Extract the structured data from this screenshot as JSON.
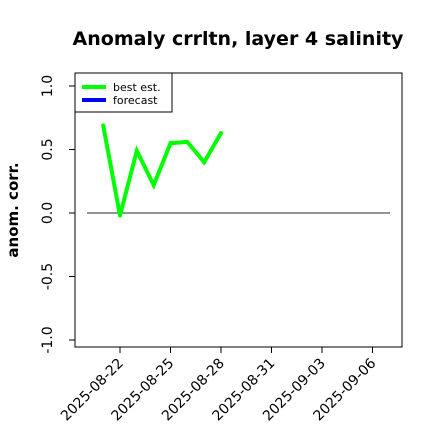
{
  "chart_data": {
    "type": "line",
    "title": "Anomaly crrltn, layer 4 salinity",
    "xlabel": "",
    "ylabel": "anom. corr.",
    "ylim": [
      -1.0,
      1.0
    ],
    "yticks": [
      "-1.0",
      "-0.5",
      "0.0",
      "0.5",
      "1.0"
    ],
    "ytick_values": [
      -1.0,
      -0.5,
      0.0,
      0.5,
      1.0
    ],
    "xticks": [
      "2025-08-22",
      "2025-08-25",
      "2025-08-28",
      "2025-08-31",
      "2025-09-03",
      "2025-09-06"
    ],
    "highlighted_xtick": "2025-08-28",
    "highlight_color": "#228b22",
    "grid": false,
    "legend_position": "top-left",
    "reference_line": {
      "y": 0.0,
      "color": "#555555"
    },
    "series": [
      {
        "name": "best est.",
        "color": "#00ff00",
        "x": [
          "2025-08-21",
          "2025-08-22",
          "2025-08-23",
          "2025-08-24",
          "2025-08-25",
          "2025-08-26",
          "2025-08-27",
          "2025-08-28"
        ],
        "values": [
          0.69,
          -0.02,
          0.49,
          0.22,
          0.55,
          0.56,
          0.4,
          0.63
        ]
      },
      {
        "name": "forecast",
        "color": "#0000ff",
        "x": [],
        "values": []
      }
    ]
  }
}
